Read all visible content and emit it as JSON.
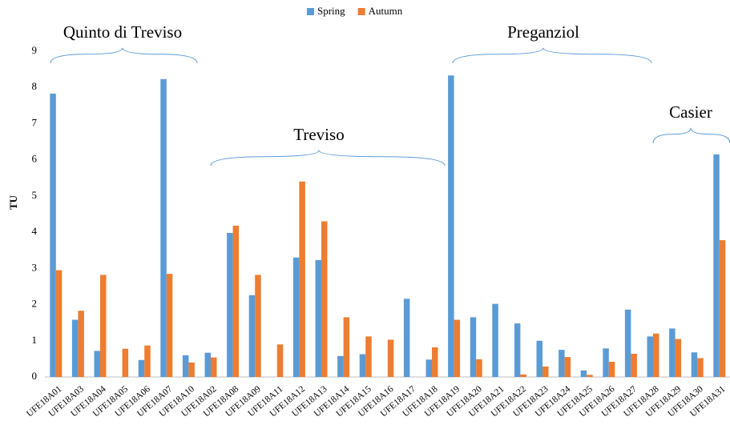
{
  "chart_data": {
    "type": "bar",
    "y_label": "TU",
    "categories": [
      "UFE18A01",
      "UFE18A03",
      "UFE18A04",
      "UFE18A05",
      "UFE18A06",
      "UFE18A07",
      "UFE18A10",
      "UFE18A02",
      "UFE18A08",
      "UFE18A09",
      "UFE18A11",
      "UFE18A12",
      "UFE18A13",
      "UFE18A14",
      "UFE18A15",
      "UFE18A16",
      "UFE18A17",
      "UFE18A18",
      "UFE18A19",
      "UFE18A20",
      "UFE18A21",
      "UFE18A22",
      "UFE18A23",
      "UFE18A24",
      "UFE18A25",
      "UFE18A26",
      "UFE18A27",
      "UFE18A28",
      "UFE18A29",
      "UFE18A30",
      "UFE18A31"
    ],
    "series": [
      {
        "name": "Spring",
        "color": "#5b9bd5",
        "values": [
          7.83,
          1.58,
          0.72,
          null,
          0.47,
          8.23,
          0.6,
          0.67,
          3.98,
          2.26,
          null,
          3.3,
          3.23,
          0.58,
          0.63,
          null,
          2.16,
          0.48,
          8.33,
          1.65,
          2.02,
          1.48,
          1.0,
          0.75,
          0.18,
          0.79,
          1.86,
          1.12,
          1.34,
          0.68,
          6.15
        ]
      },
      {
        "name": "Autumn",
        "color": "#ed7d31",
        "values": [
          2.95,
          1.83,
          2.82,
          0.78,
          0.87,
          2.85,
          0.4,
          0.54,
          4.18,
          2.82,
          0.9,
          5.4,
          4.3,
          1.65,
          1.12,
          1.03,
          null,
          0.82,
          1.58,
          0.49,
          null,
          0.07,
          0.29,
          0.55,
          0.06,
          0.42,
          0.64,
          1.2,
          1.05,
          0.52,
          3.78
        ]
      }
    ],
    "ylim": [
      0,
      9
    ],
    "yticks": [
      0,
      1,
      2,
      3,
      4,
      5,
      6,
      7,
      8,
      9
    ],
    "grid": false,
    "legend": "top",
    "annotations": [
      "Quinto di Treviso",
      "Treviso",
      "Preganziol",
      "Casier"
    ]
  }
}
